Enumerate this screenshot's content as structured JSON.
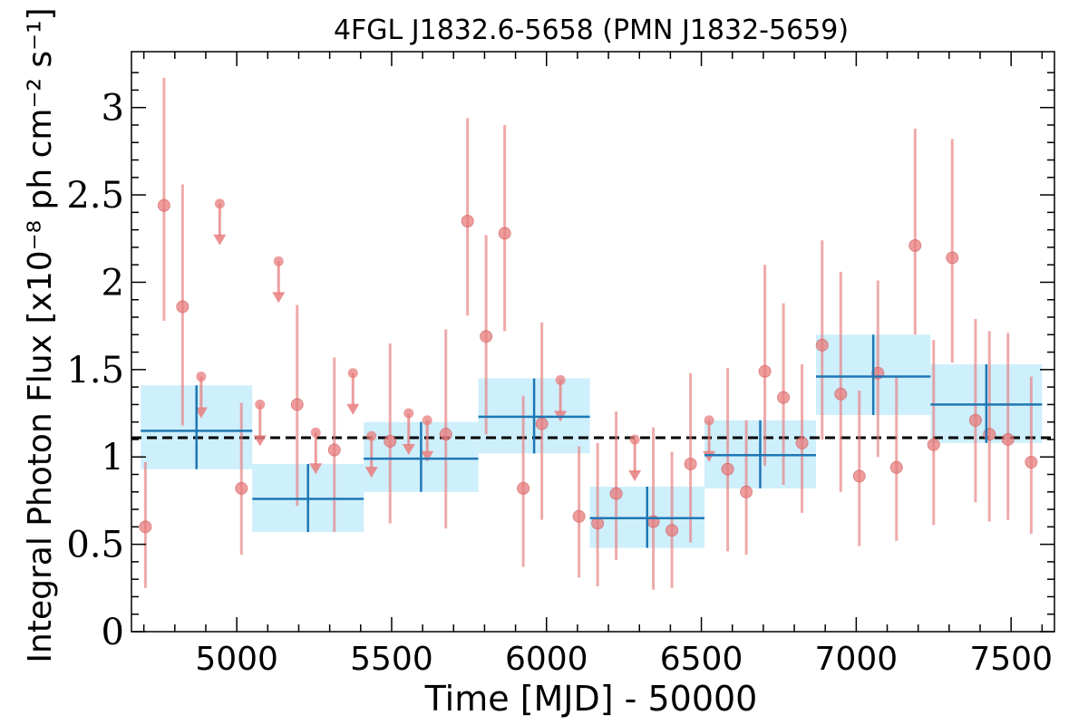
{
  "chart_data": {
    "type": "scatter",
    "title": "4FGL J1832.6-5658 (PMN J1832-5659)",
    "xlabel": "Time [MJD] - 50000",
    "ylabel": "Integral Photon Flux [x10⁻⁸ ph cm⁻² s⁻¹]",
    "xlim": [
      4660,
      7640
    ],
    "ylim": [
      0,
      3.32
    ],
    "x_ticks": [
      5000,
      5500,
      6000,
      6500,
      7000,
      7500
    ],
    "y_ticks": [
      0,
      0.5,
      1,
      1.5,
      2,
      2.5,
      3
    ],
    "y_tick_labels": [
      "0",
      "0.5",
      "1",
      "1.5",
      "2",
      "2.5",
      "3"
    ],
    "average_flux": 1.11,
    "colors": {
      "points": "#e87d7d",
      "bins_fill": "#c6ecfc",
      "bins_line": "#1f77b4",
      "average_line": "#000000"
    },
    "series": [
      {
        "kind": "detections",
        "points": [
          {
            "x": 4705,
            "y": 0.6,
            "lo": 0.25,
            "hi": 0.97
          },
          {
            "x": 4765,
            "y": 2.44,
            "lo": 1.78,
            "hi": 3.17
          },
          {
            "x": 4825,
            "y": 1.86,
            "lo": 1.18,
            "hi": 2.56
          },
          {
            "x": 5015,
            "y": 0.82,
            "lo": 0.44,
            "hi": 1.31
          },
          {
            "x": 5195,
            "y": 1.3,
            "lo": 0.72,
            "hi": 1.87
          },
          {
            "x": 5315,
            "y": 1.04,
            "lo": 0.57,
            "hi": 1.57
          },
          {
            "x": 5495,
            "y": 1.09,
            "lo": 0.62,
            "hi": 1.65
          },
          {
            "x": 5675,
            "y": 1.13,
            "lo": 0.59,
            "hi": 1.73
          },
          {
            "x": 5745,
            "y": 2.35,
            "lo": 1.81,
            "hi": 2.94
          },
          {
            "x": 5805,
            "y": 1.69,
            "lo": 1.13,
            "hi": 2.27
          },
          {
            "x": 5865,
            "y": 2.28,
            "lo": 1.72,
            "hi": 2.9
          },
          {
            "x": 5925,
            "y": 0.82,
            "lo": 0.37,
            "hi": 1.35
          },
          {
            "x": 5985,
            "y": 1.19,
            "lo": 0.64,
            "hi": 1.77
          },
          {
            "x": 6105,
            "y": 0.66,
            "lo": 0.31,
            "hi": 1.06
          },
          {
            "x": 6165,
            "y": 0.62,
            "lo": 0.26,
            "hi": 1.08
          },
          {
            "x": 6225,
            "y": 0.79,
            "lo": 0.41,
            "hi": 1.26
          },
          {
            "x": 6345,
            "y": 0.63,
            "lo": 0.24,
            "hi": 1.17
          },
          {
            "x": 6405,
            "y": 0.58,
            "lo": 0.25,
            "hi": 1.03
          },
          {
            "x": 6465,
            "y": 0.96,
            "lo": 0.51,
            "hi": 1.48
          },
          {
            "x": 6585,
            "y": 0.93,
            "lo": 0.46,
            "hi": 1.51
          },
          {
            "x": 6645,
            "y": 0.8,
            "lo": 0.44,
            "hi": 1.21
          },
          {
            "x": 6705,
            "y": 1.49,
            "lo": 0.95,
            "hi": 2.1
          },
          {
            "x": 6765,
            "y": 1.34,
            "lo": 0.84,
            "hi": 1.88
          },
          {
            "x": 6825,
            "y": 1.08,
            "lo": 0.68,
            "hi": 1.53
          },
          {
            "x": 6890,
            "y": 1.64,
            "lo": 1.1,
            "hi": 2.24
          },
          {
            "x": 6950,
            "y": 1.36,
            "lo": 0.8,
            "hi": 2.06
          },
          {
            "x": 7010,
            "y": 0.89,
            "lo": 0.49,
            "hi": 1.38
          },
          {
            "x": 7070,
            "y": 1.48,
            "lo": 1.0,
            "hi": 2.01
          },
          {
            "x": 7130,
            "y": 0.94,
            "lo": 0.52,
            "hi": 1.46
          },
          {
            "x": 7190,
            "y": 2.21,
            "lo": 1.7,
            "hi": 2.88
          },
          {
            "x": 7250,
            "y": 1.07,
            "lo": 0.61,
            "hi": 1.67
          },
          {
            "x": 7310,
            "y": 2.14,
            "lo": 1.54,
            "hi": 2.82
          },
          {
            "x": 7385,
            "y": 1.21,
            "lo": 0.74,
            "hi": 1.79
          },
          {
            "x": 7430,
            "y": 1.13,
            "lo": 0.63,
            "hi": 1.72
          },
          {
            "x": 7490,
            "y": 1.1,
            "lo": 0.64,
            "hi": 1.71
          },
          {
            "x": 7565,
            "y": 0.97,
            "lo": 0.56,
            "hi": 1.46
          }
        ]
      },
      {
        "kind": "upper_limits",
        "points": [
          {
            "x": 4885,
            "y": 1.46
          },
          {
            "x": 4945,
            "y": 2.45
          },
          {
            "x": 5075,
            "y": 1.3
          },
          {
            "x": 5135,
            "y": 2.12
          },
          {
            "x": 5255,
            "y": 1.14
          },
          {
            "x": 5375,
            "y": 1.48
          },
          {
            "x": 5435,
            "y": 1.12
          },
          {
            "x": 5555,
            "y": 1.25
          },
          {
            "x": 5615,
            "y": 1.21
          },
          {
            "x": 6045,
            "y": 1.44
          },
          {
            "x": 6285,
            "y": 1.1
          },
          {
            "x": 6525,
            "y": 1.21
          }
        ]
      },
      {
        "kind": "binned",
        "bins": [
          {
            "x0": 4690,
            "x1": 5050,
            "y": 1.15,
            "lo": 0.93,
            "hi": 1.41
          },
          {
            "x0": 5050,
            "x1": 5410,
            "y": 0.76,
            "lo": 0.57,
            "hi": 0.96
          },
          {
            "x0": 5410,
            "x1": 5780,
            "y": 0.99,
            "lo": 0.8,
            "hi": 1.2
          },
          {
            "x0": 5780,
            "x1": 6140,
            "y": 1.23,
            "lo": 1.02,
            "hi": 1.45
          },
          {
            "x0": 6140,
            "x1": 6510,
            "y": 0.65,
            "lo": 0.48,
            "hi": 0.83
          },
          {
            "x0": 6510,
            "x1": 6870,
            "y": 1.01,
            "lo": 0.82,
            "hi": 1.21
          },
          {
            "x0": 6870,
            "x1": 7240,
            "y": 1.46,
            "lo": 1.24,
            "hi": 1.7
          },
          {
            "x0": 7240,
            "x1": 7600,
            "y": 1.3,
            "lo": 1.08,
            "hi": 1.53
          }
        ]
      }
    ]
  }
}
